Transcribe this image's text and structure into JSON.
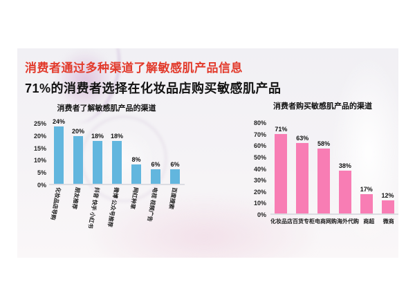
{
  "slide": {
    "title_line1": "消费者通过多种渠道了解敏感肌产品信息",
    "title_line2": "71%的消费者选择在化妆品店购买敏感肌产品",
    "colors": {
      "title_red": "#e23a2b",
      "left_bar_blue": "#62b6de",
      "right_bar_pink": "#f87db4",
      "slide_background": "#f3f1f5"
    }
  },
  "chart_data": [
    {
      "type": "bar",
      "title": "消费者了解敏感肌产品的渠道",
      "categories": [
        "化妆品店导购",
        "朋友推荐",
        "抖音 快手 小红书",
        "微博 公众号推荐",
        "网红种草",
        "电视 视频广告",
        "百度搜索"
      ],
      "values": [
        24,
        20,
        18,
        18,
        8,
        6,
        6
      ],
      "value_labels": [
        "24%",
        "20%",
        "18%",
        "18%",
        "8%",
        "6%",
        "6%"
      ],
      "yticks": [
        "25%",
        "20%",
        "15%",
        "10%",
        "5%",
        "0%"
      ],
      "ylim": [
        0,
        25
      ],
      "xlabel": "",
      "ylabel": "",
      "grid": false,
      "legend": false,
      "bar_color": "#62b6de"
    },
    {
      "type": "bar",
      "title": "消费者购买敏感肌产品的渠道",
      "categories": [
        "化妆品店",
        "百货专柜",
        "电商网购",
        "海外代购",
        "商超",
        "微商"
      ],
      "values": [
        71,
        63,
        58,
        38,
        17,
        12
      ],
      "value_labels": [
        "71%",
        "63%",
        "58%",
        "38%",
        "17%",
        "12%"
      ],
      "yticks": [
        "80%",
        "70%",
        "60%",
        "50%",
        "40%",
        "30%",
        "20%",
        "10%",
        "0%"
      ],
      "ylim": [
        0,
        80
      ],
      "xlabel": "",
      "ylabel": "",
      "grid": false,
      "legend": false,
      "bar_color": "#f87db4"
    }
  ]
}
